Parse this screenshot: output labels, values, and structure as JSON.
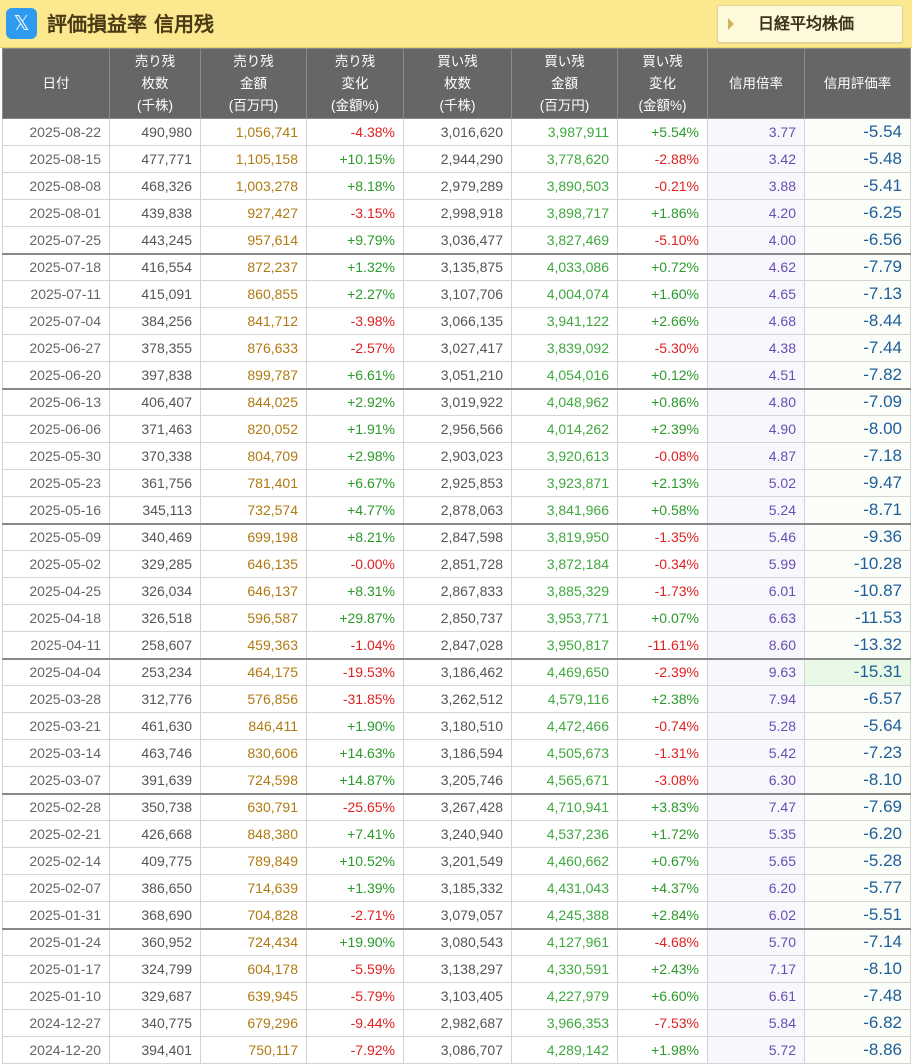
{
  "header": {
    "logo_icon": "x-logo-icon",
    "logo_glyph": "𝕏",
    "title": "評価損益率 信用残",
    "nikkei_button": "日経平均株価"
  },
  "columns": [
    {
      "lines": [
        "日付"
      ]
    },
    {
      "lines": [
        "売り残",
        "枚数",
        "(千株)"
      ]
    },
    {
      "lines": [
        "売り残",
        "金額",
        "(百万円)"
      ]
    },
    {
      "lines": [
        "売り残",
        "変化",
        "(金額%)"
      ]
    },
    {
      "lines": [
        "買い残",
        "枚数",
        "(千株)"
      ]
    },
    {
      "lines": [
        "買い残",
        "金額",
        "(百万円)"
      ]
    },
    {
      "lines": [
        "買い残",
        "変化",
        "(金額%)"
      ]
    },
    {
      "lines": [
        "信用倍率"
      ]
    },
    {
      "lines": [
        "信用評価率"
      ]
    }
  ],
  "rows": [
    {
      "date": "2025-08-22",
      "sell_qty": "490,980",
      "sell_amt": "1,056,741",
      "sell_chg": "-4.38%",
      "buy_qty": "3,016,620",
      "buy_amt": "3,987,911",
      "buy_chg": "+5.54%",
      "ratio": "3.77",
      "eval": "-5.54"
    },
    {
      "date": "2025-08-15",
      "sell_qty": "477,771",
      "sell_amt": "1,105,158",
      "sell_chg": "+10.15%",
      "buy_qty": "2,944,290",
      "buy_amt": "3,778,620",
      "buy_chg": "-2.88%",
      "ratio": "3.42",
      "eval": "-5.48"
    },
    {
      "date": "2025-08-08",
      "sell_qty": "468,326",
      "sell_amt": "1,003,278",
      "sell_chg": "+8.18%",
      "buy_qty": "2,979,289",
      "buy_amt": "3,890,503",
      "buy_chg": "-0.21%",
      "ratio": "3.88",
      "eval": "-5.41"
    },
    {
      "date": "2025-08-01",
      "sell_qty": "439,838",
      "sell_amt": "927,427",
      "sell_chg": "-3.15%",
      "buy_qty": "2,998,918",
      "buy_amt": "3,898,717",
      "buy_chg": "+1.86%",
      "ratio": "4.20",
      "eval": "-6.25"
    },
    {
      "date": "2025-07-25",
      "sell_qty": "443,245",
      "sell_amt": "957,614",
      "sell_chg": "+9.79%",
      "buy_qty": "3,036,477",
      "buy_amt": "3,827,469",
      "buy_chg": "-5.10%",
      "ratio": "4.00",
      "eval": "-6.56"
    },
    {
      "date": "2025-07-18",
      "sell_qty": "416,554",
      "sell_amt": "872,237",
      "sell_chg": "+1.32%",
      "buy_qty": "3,135,875",
      "buy_amt": "4,033,086",
      "buy_chg": "+0.72%",
      "ratio": "4.62",
      "eval": "-7.79"
    },
    {
      "date": "2025-07-11",
      "sell_qty": "415,091",
      "sell_amt": "860,855",
      "sell_chg": "+2.27%",
      "buy_qty": "3,107,706",
      "buy_amt": "4,004,074",
      "buy_chg": "+1.60%",
      "ratio": "4.65",
      "eval": "-7.13"
    },
    {
      "date": "2025-07-04",
      "sell_qty": "384,256",
      "sell_amt": "841,712",
      "sell_chg": "-3.98%",
      "buy_qty": "3,066,135",
      "buy_amt": "3,941,122",
      "buy_chg": "+2.66%",
      "ratio": "4.68",
      "eval": "-8.44"
    },
    {
      "date": "2025-06-27",
      "sell_qty": "378,355",
      "sell_amt": "876,633",
      "sell_chg": "-2.57%",
      "buy_qty": "3,027,417",
      "buy_amt": "3,839,092",
      "buy_chg": "-5.30%",
      "ratio": "4.38",
      "eval": "-7.44"
    },
    {
      "date": "2025-06-20",
      "sell_qty": "397,838",
      "sell_amt": "899,787",
      "sell_chg": "+6.61%",
      "buy_qty": "3,051,210",
      "buy_amt": "4,054,016",
      "buy_chg": "+0.12%",
      "ratio": "4.51",
      "eval": "-7.82"
    },
    {
      "date": "2025-06-13",
      "sell_qty": "406,407",
      "sell_amt": "844,025",
      "sell_chg": "+2.92%",
      "buy_qty": "3,019,922",
      "buy_amt": "4,048,962",
      "buy_chg": "+0.86%",
      "ratio": "4.80",
      "eval": "-7.09"
    },
    {
      "date": "2025-06-06",
      "sell_qty": "371,463",
      "sell_amt": "820,052",
      "sell_chg": "+1.91%",
      "buy_qty": "2,956,566",
      "buy_amt": "4,014,262",
      "buy_chg": "+2.39%",
      "ratio": "4.90",
      "eval": "-8.00"
    },
    {
      "date": "2025-05-30",
      "sell_qty": "370,338",
      "sell_amt": "804,709",
      "sell_chg": "+2.98%",
      "buy_qty": "2,903,023",
      "buy_amt": "3,920,613",
      "buy_chg": "-0.08%",
      "ratio": "4.87",
      "eval": "-7.18"
    },
    {
      "date": "2025-05-23",
      "sell_qty": "361,756",
      "sell_amt": "781,401",
      "sell_chg": "+6.67%",
      "buy_qty": "2,925,853",
      "buy_amt": "3,923,871",
      "buy_chg": "+2.13%",
      "ratio": "5.02",
      "eval": "-9.47"
    },
    {
      "date": "2025-05-16",
      "sell_qty": "345,113",
      "sell_amt": "732,574",
      "sell_chg": "+4.77%",
      "buy_qty": "2,878,063",
      "buy_amt": "3,841,966",
      "buy_chg": "+0.58%",
      "ratio": "5.24",
      "eval": "-8.71"
    },
    {
      "date": "2025-05-09",
      "sell_qty": "340,469",
      "sell_amt": "699,198",
      "sell_chg": "+8.21%",
      "buy_qty": "2,847,598",
      "buy_amt": "3,819,950",
      "buy_chg": "-1.35%",
      "ratio": "5.46",
      "eval": "-9.36"
    },
    {
      "date": "2025-05-02",
      "sell_qty": "329,285",
      "sell_amt": "646,135",
      "sell_chg": "-0.00%",
      "buy_qty": "2,851,728",
      "buy_amt": "3,872,184",
      "buy_chg": "-0.34%",
      "ratio": "5.99",
      "eval": "-10.28"
    },
    {
      "date": "2025-04-25",
      "sell_qty": "326,034",
      "sell_amt": "646,137",
      "sell_chg": "+8.31%",
      "buy_qty": "2,867,833",
      "buy_amt": "3,885,329",
      "buy_chg": "-1.73%",
      "ratio": "6.01",
      "eval": "-10.87"
    },
    {
      "date": "2025-04-18",
      "sell_qty": "326,518",
      "sell_amt": "596,587",
      "sell_chg": "+29.87%",
      "buy_qty": "2,850,737",
      "buy_amt": "3,953,771",
      "buy_chg": "+0.07%",
      "ratio": "6.63",
      "eval": "-11.53"
    },
    {
      "date": "2025-04-11",
      "sell_qty": "258,607",
      "sell_amt": "459,363",
      "sell_chg": "-1.04%",
      "buy_qty": "2,847,028",
      "buy_amt": "3,950,817",
      "buy_chg": "-11.61%",
      "ratio": "8.60",
      "eval": "-13.32"
    },
    {
      "date": "2025-04-04",
      "sell_qty": "253,234",
      "sell_amt": "464,175",
      "sell_chg": "-19.53%",
      "buy_qty": "3,186,462",
      "buy_amt": "4,469,650",
      "buy_chg": "-2.39%",
      "ratio": "9.63",
      "eval": "-15.31",
      "highlight": true
    },
    {
      "date": "2025-03-28",
      "sell_qty": "312,776",
      "sell_amt": "576,856",
      "sell_chg": "-31.85%",
      "buy_qty": "3,262,512",
      "buy_amt": "4,579,116",
      "buy_chg": "+2.38%",
      "ratio": "7.94",
      "eval": "-6.57"
    },
    {
      "date": "2025-03-21",
      "sell_qty": "461,630",
      "sell_amt": "846,411",
      "sell_chg": "+1.90%",
      "buy_qty": "3,180,510",
      "buy_amt": "4,472,466",
      "buy_chg": "-0.74%",
      "ratio": "5.28",
      "eval": "-5.64"
    },
    {
      "date": "2025-03-14",
      "sell_qty": "463,746",
      "sell_amt": "830,606",
      "sell_chg": "+14.63%",
      "buy_qty": "3,186,594",
      "buy_amt": "4,505,673",
      "buy_chg": "-1.31%",
      "ratio": "5.42",
      "eval": "-7.23"
    },
    {
      "date": "2025-03-07",
      "sell_qty": "391,639",
      "sell_amt": "724,598",
      "sell_chg": "+14.87%",
      "buy_qty": "3,205,746",
      "buy_amt": "4,565,671",
      "buy_chg": "-3.08%",
      "ratio": "6.30",
      "eval": "-8.10"
    },
    {
      "date": "2025-02-28",
      "sell_qty": "350,738",
      "sell_amt": "630,791",
      "sell_chg": "-25.65%",
      "buy_qty": "3,267,428",
      "buy_amt": "4,710,941",
      "buy_chg": "+3.83%",
      "ratio": "7.47",
      "eval": "-7.69"
    },
    {
      "date": "2025-02-21",
      "sell_qty": "426,668",
      "sell_amt": "848,380",
      "sell_chg": "+7.41%",
      "buy_qty": "3,240,940",
      "buy_amt": "4,537,236",
      "buy_chg": "+1.72%",
      "ratio": "5.35",
      "eval": "-6.20"
    },
    {
      "date": "2025-02-14",
      "sell_qty": "409,775",
      "sell_amt": "789,849",
      "sell_chg": "+10.52%",
      "buy_qty": "3,201,549",
      "buy_amt": "4,460,662",
      "buy_chg": "+0.67%",
      "ratio": "5.65",
      "eval": "-5.28"
    },
    {
      "date": "2025-02-07",
      "sell_qty": "386,650",
      "sell_amt": "714,639",
      "sell_chg": "+1.39%",
      "buy_qty": "3,185,332",
      "buy_amt": "4,431,043",
      "buy_chg": "+4.37%",
      "ratio": "6.20",
      "eval": "-5.77"
    },
    {
      "date": "2025-01-31",
      "sell_qty": "368,690",
      "sell_amt": "704,828",
      "sell_chg": "-2.71%",
      "buy_qty": "3,079,057",
      "buy_amt": "4,245,388",
      "buy_chg": "+2.84%",
      "ratio": "6.02",
      "eval": "-5.51"
    },
    {
      "date": "2025-01-24",
      "sell_qty": "360,952",
      "sell_amt": "724,434",
      "sell_chg": "+19.90%",
      "buy_qty": "3,080,543",
      "buy_amt": "4,127,961",
      "buy_chg": "-4.68%",
      "ratio": "5.70",
      "eval": "-7.14"
    },
    {
      "date": "2025-01-17",
      "sell_qty": "324,799",
      "sell_amt": "604,178",
      "sell_chg": "-5.59%",
      "buy_qty": "3,138,297",
      "buy_amt": "4,330,591",
      "buy_chg": "+2.43%",
      "ratio": "7.17",
      "eval": "-8.10"
    },
    {
      "date": "2025-01-10",
      "sell_qty": "329,687",
      "sell_amt": "639,945",
      "sell_chg": "-5.79%",
      "buy_qty": "3,103,405",
      "buy_amt": "4,227,979",
      "buy_chg": "+6.60%",
      "ratio": "6.61",
      "eval": "-7.48"
    },
    {
      "date": "2024-12-27",
      "sell_qty": "340,775",
      "sell_amt": "679,296",
      "sell_chg": "-9.44%",
      "buy_qty": "2,982,687",
      "buy_amt": "3,966,353",
      "buy_chg": "-7.53%",
      "ratio": "5.84",
      "eval": "-6.82"
    },
    {
      "date": "2024-12-20",
      "sell_qty": "394,401",
      "sell_amt": "750,117",
      "sell_chg": "-7.92%",
      "buy_qty": "3,086,707",
      "buy_amt": "4,289,142",
      "buy_chg": "+1.98%",
      "ratio": "5.72",
      "eval": "-8.86"
    }
  ]
}
